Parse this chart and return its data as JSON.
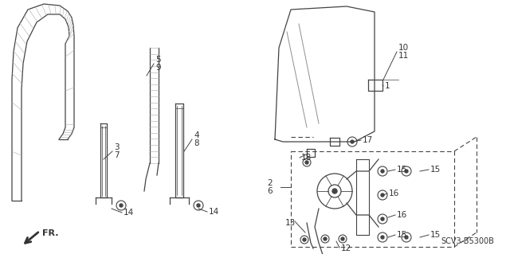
{
  "bg_color": "#ffffff",
  "diagram_id": "SCV3-B5300B",
  "line_color": "#444444",
  "hatch_color": "#888888"
}
